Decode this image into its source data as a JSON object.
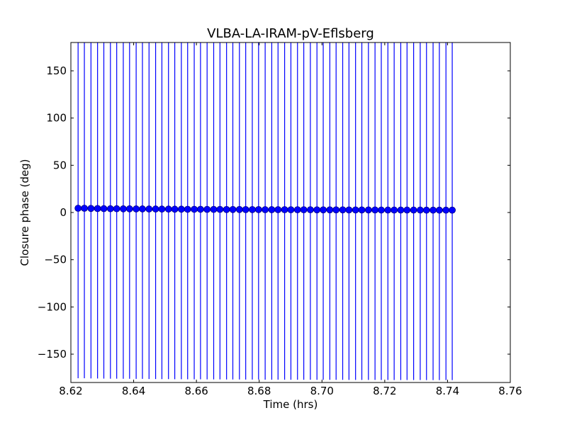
{
  "chart_data": {
    "type": "scatter",
    "title": "VLBA-LA-IRAM-pV-Eflsberg",
    "xlabel": "Time (hrs)",
    "ylabel": "Closure phase (deg)",
    "xlim": [
      8.62,
      8.76
    ],
    "ylim": [
      -180,
      180
    ],
    "xticks": [
      8.62,
      8.64,
      8.66,
      8.68,
      8.7,
      8.72,
      8.74,
      8.76
    ],
    "xtick_labels": [
      "8.62",
      "8.64",
      "8.66",
      "8.68",
      "8.70",
      "8.72",
      "8.74",
      "8.76"
    ],
    "yticks": [
      -150,
      -100,
      -50,
      0,
      50,
      100,
      150
    ],
    "ytick_labels": [
      "−150",
      "−100",
      "−50",
      "0",
      "50",
      "100",
      "150"
    ],
    "grid": false,
    "marker_color": "#0000ff",
    "errorbar_color": "#0000ff",
    "series": [
      {
        "x": [
          8.6223,
          8.6243,
          8.6264,
          8.6285,
          8.6305,
          8.6326,
          8.6346,
          8.6367,
          8.6387,
          8.6408,
          8.6428,
          8.6449,
          8.647,
          8.649,
          8.6511,
          8.6531,
          8.6552,
          8.6572,
          8.6593,
          8.6613,
          8.6634,
          8.6655,
          8.6675,
          8.6696,
          8.6716,
          8.6737,
          8.6757,
          8.6778,
          8.6798,
          8.6819,
          8.684,
          8.686,
          8.6881,
          8.6901,
          8.6922,
          8.6942,
          8.6963,
          8.6984,
          8.7004,
          8.7025,
          8.7045,
          8.7066,
          8.7086,
          8.7107,
          8.7127,
          8.7148,
          8.7169,
          8.7189,
          8.721,
          8.723,
          8.7251,
          8.7271,
          8.7292,
          8.7313,
          8.7333,
          8.7354,
          8.7374,
          8.7395,
          8.7415
        ],
        "y": [
          4.5,
          4.5,
          4.3,
          4.2,
          4.1,
          4.0,
          4.0,
          3.9,
          3.9,
          3.8,
          3.8,
          3.7,
          3.7,
          3.6,
          3.6,
          3.5,
          3.5,
          3.4,
          3.4,
          3.4,
          3.3,
          3.3,
          3.3,
          3.2,
          3.2,
          3.2,
          3.1,
          3.1,
          3.1,
          3.0,
          3.0,
          3.0,
          3.0,
          2.9,
          2.9,
          2.9,
          2.9,
          2.8,
          2.8,
          2.8,
          2.8,
          2.8,
          2.7,
          2.7,
          2.7,
          2.7,
          2.7,
          2.6,
          2.6,
          2.6,
          2.6,
          2.6,
          2.6,
          2.6,
          2.5,
          2.5,
          2.5,
          2.5,
          2.5
        ],
        "yerr": [
          180,
          180,
          180,
          180,
          180,
          180,
          180,
          180,
          180,
          180,
          180,
          180,
          180,
          180,
          180,
          180,
          180,
          180,
          180,
          180,
          180,
          180,
          180,
          180,
          180,
          180,
          180,
          180,
          180,
          180,
          180,
          180,
          180,
          180,
          180,
          180,
          180,
          180,
          180,
          180,
          180,
          180,
          180,
          180,
          180,
          180,
          180,
          180,
          180,
          180,
          180,
          180,
          180,
          180,
          180,
          180,
          180,
          180,
          180
        ]
      }
    ]
  }
}
